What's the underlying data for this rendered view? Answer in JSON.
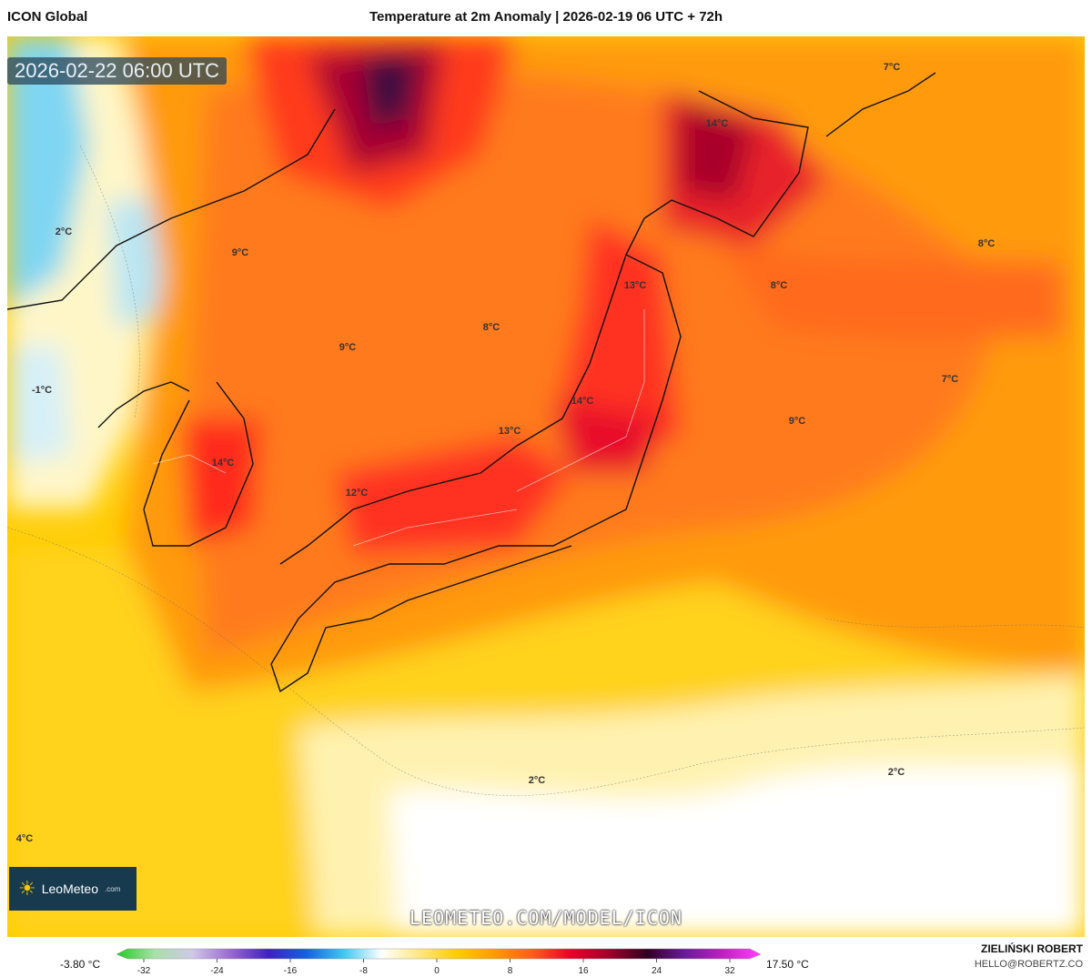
{
  "header": {
    "model": "ICON Global",
    "title": "Temperature at 2m Anomaly | 2026-02-19 06 UTC + 72h"
  },
  "map": {
    "valid_time": "2026-02-22 06:00 UTC",
    "variable": "2m temperature anomaly",
    "units": "°C",
    "region": "Japan, Korea, East China Sea, NW Pacific",
    "labels": [
      "7°C",
      "14°C",
      "2°C",
      "9°C",
      "13°C",
      "8°C",
      "8°C",
      "8°C",
      "9°C",
      "-1°C",
      "7°C",
      "14°C",
      "13°C",
      "9°C",
      "14°C",
      "12°C",
      "2°C",
      "2°C",
      "4°C"
    ]
  },
  "branding": {
    "logo": "LeoMeteo",
    "logo_tld": ".com",
    "watermark": "LEOMETEO.COM/MODEL/ICON",
    "author": "ZIELIŃSKI ROBERT",
    "email": "HELLO@ROBERTZ.CO"
  },
  "colorbar": {
    "min_label": "-3.80 °C",
    "max_label": "17.50 °C",
    "ticks": [
      "-32",
      "-24",
      "-16",
      "-8",
      "0",
      "8",
      "16",
      "24",
      "32"
    ],
    "stops": [
      "#22cc22",
      "#a8e0a8",
      "#d0c8e8",
      "#9a6ad0",
      "#4020c0",
      "#1460e0",
      "#40c8f0",
      "#ffffff",
      "#ffe680",
      "#ffcc00",
      "#ff9900",
      "#ff5a1a",
      "#e8002a",
      "#a0002a",
      "#300020",
      "#6a1a9a",
      "#c020c0",
      "#ff40ff"
    ]
  }
}
